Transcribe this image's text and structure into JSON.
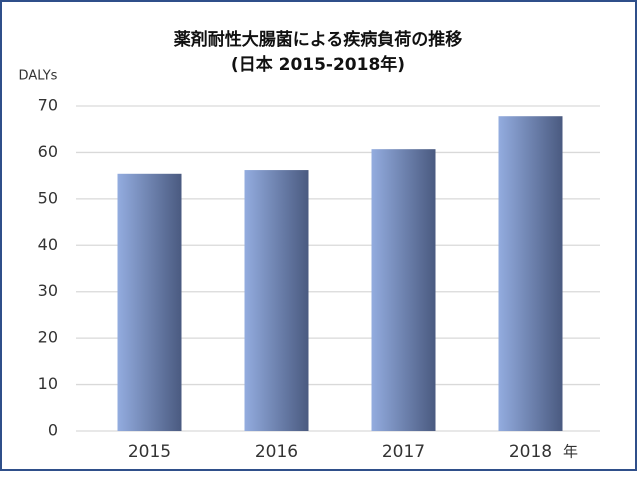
{
  "chart_data": {
    "type": "bar",
    "title": "薬剤耐性大腸菌による疾病負荷の推移",
    "subtitle": "(日本 2015-2018年)",
    "y_label": "DALYs",
    "x_label": "年",
    "categories": [
      "2015",
      "2016",
      "2017",
      "2018"
    ],
    "values": [
      55.4,
      56.2,
      60.7,
      67.8
    ],
    "gradient": [
      "#93acdf",
      "#4a5a80"
    ],
    "ylim": [
      0,
      70
    ],
    "yticks": [
      0,
      10,
      20,
      30,
      40,
      50,
      60,
      70
    ],
    "grid": true
  }
}
